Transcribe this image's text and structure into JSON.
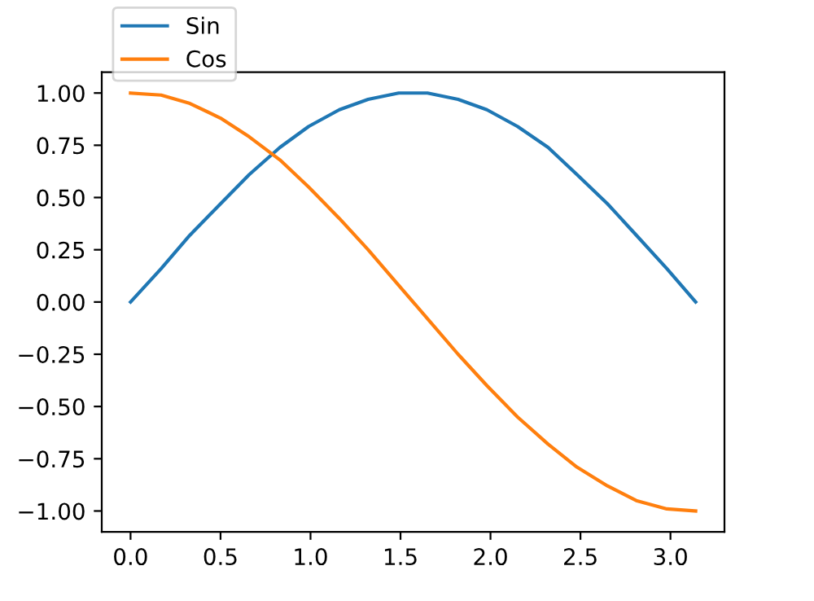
{
  "chart_data": {
    "type": "line",
    "x": [
      0,
      0.17,
      0.33,
      0.5,
      0.66,
      0.83,
      0.99,
      1.16,
      1.32,
      1.49,
      1.65,
      1.82,
      1.98,
      2.15,
      2.32,
      2.48,
      2.65,
      2.81,
      2.98,
      3.14
    ],
    "series": [
      {
        "name": "Sin",
        "color": "#1f77b4",
        "values": [
          0,
          0.16,
          0.32,
          0.47,
          0.61,
          0.74,
          0.84,
          0.92,
          0.97,
          1.0,
          1.0,
          0.97,
          0.92,
          0.84,
          0.74,
          0.61,
          0.47,
          0.32,
          0.16,
          0.0
        ]
      },
      {
        "name": "Cos",
        "color": "#ff7f0e",
        "values": [
          1.0,
          0.99,
          0.95,
          0.88,
          0.79,
          0.68,
          0.55,
          0.4,
          0.25,
          0.08,
          -0.08,
          -0.25,
          -0.4,
          -0.55,
          -0.68,
          -0.79,
          -0.88,
          -0.95,
          -0.99,
          -1.0
        ]
      }
    ],
    "xlim": [
      -0.16,
      3.3
    ],
    "ylim": [
      -1.1,
      1.1
    ],
    "xticks": [
      {
        "value": 0,
        "label": "0.0"
      },
      {
        "value": 0.5,
        "label": "0.5"
      },
      {
        "value": 1,
        "label": "1.0"
      },
      {
        "value": 1.5,
        "label": "1.5"
      },
      {
        "value": 2,
        "label": "2.0"
      },
      {
        "value": 2.5,
        "label": "2.5"
      },
      {
        "value": 3,
        "label": "3.0"
      }
    ],
    "yticks": [
      {
        "value": -1,
        "label": "−1.00"
      },
      {
        "value": -0.75,
        "label": "−0.75"
      },
      {
        "value": -0.5,
        "label": "−0.50"
      },
      {
        "value": -0.25,
        "label": "−0.25"
      },
      {
        "value": 0,
        "label": "0.00"
      },
      {
        "value": 0.25,
        "label": "0.25"
      },
      {
        "value": 0.5,
        "label": "0.50"
      },
      {
        "value": 0.75,
        "label": "0.75"
      },
      {
        "value": 1,
        "label": "1.00"
      }
    ],
    "legend": "top left",
    "grid": false,
    "marker": "none",
    "line_style": "solid"
  }
}
